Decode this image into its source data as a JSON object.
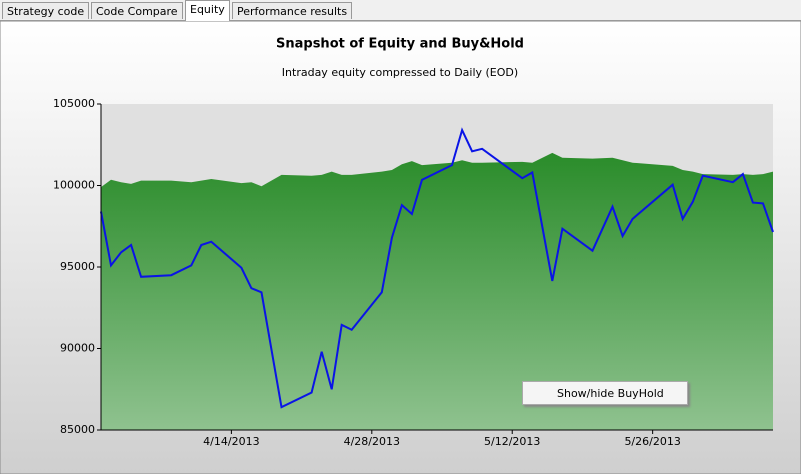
{
  "tabs": [
    "Strategy code",
    "Code Compare",
    "Equity",
    "Performance results"
  ],
  "active_tab": 2,
  "menu_item": "Show/hide BuyHold",
  "chart_data": {
    "type": "line",
    "title": "Snapshot of Equity and Buy&Hold",
    "subtitle": "Intraday equity compressed to Daily (EOD)",
    "x": [
      "2013-04-01",
      "2013-04-02",
      "2013-04-03",
      "2013-04-04",
      "2013-04-05",
      "2013-04-08",
      "2013-04-10",
      "2013-04-11",
      "2013-04-12",
      "2013-04-15",
      "2013-04-16",
      "2013-04-17",
      "2013-04-19",
      "2013-04-22",
      "2013-04-23",
      "2013-04-24",
      "2013-04-25",
      "2013-04-26",
      "2013-04-29",
      "2013-04-30",
      "2013-05-01",
      "2013-05-02",
      "2013-05-03",
      "2013-05-06",
      "2013-05-07",
      "2013-05-08",
      "2013-05-09",
      "2013-05-13",
      "2013-05-14",
      "2013-05-16",
      "2013-05-17",
      "2013-05-20",
      "2013-05-22",
      "2013-05-23",
      "2013-05-24",
      "2013-05-28",
      "2013-05-29",
      "2013-05-30",
      "2013-05-31",
      "2013-06-03",
      "2013-06-04",
      "2013-06-05",
      "2013-06-06",
      "2013-06-07"
    ],
    "series": [
      {
        "style": "area",
        "color": "#2a8c2a",
        "color_low": "#8fc28f",
        "values": [
          99900,
          100350,
          100200,
          100100,
          100300,
          100300,
          100200,
          100300,
          100400,
          100150,
          100200,
          99950,
          100650,
          100600,
          100650,
          100850,
          100650,
          100650,
          100850,
          100950,
          101300,
          101500,
          101250,
          101400,
          101550,
          101400,
          101400,
          101450,
          101400,
          102000,
          101700,
          101650,
          101700,
          101550,
          101400,
          101200,
          100950,
          100850,
          100700,
          100650,
          100700,
          100650,
          100700,
          100850
        ]
      },
      {
        "style": "line",
        "color": "#0a14e6",
        "values": [
          98400,
          95100,
          95900,
          96350,
          94400,
          94500,
          95100,
          96350,
          96550,
          94950,
          93700,
          93450,
          86400,
          87300,
          89800,
          87500,
          91450,
          91150,
          93450,
          96800,
          98800,
          98250,
          100350,
          101250,
          103400,
          102100,
          102250,
          100450,
          100800,
          94150,
          97350,
          96000,
          98700,
          96900,
          97950,
          100050,
          97950,
          99000,
          100600,
          100200,
          100700,
          98950,
          98900,
          97150
        ]
      }
    ],
    "xlim": [
      "2013-04-01",
      "2013-06-07"
    ],
    "xticks": [
      {
        "value": "2013-04-14",
        "label": "4/14/2013"
      },
      {
        "value": "2013-04-28",
        "label": "4/28/2013"
      },
      {
        "value": "2013-05-12",
        "label": "5/12/2013"
      },
      {
        "value": "2013-05-26",
        "label": "5/26/2013"
      }
    ],
    "ylim": [
      85000,
      105000
    ],
    "yticks": [
      85000,
      90000,
      95000,
      100000,
      105000
    ],
    "plot_background": "#e0e0e0"
  }
}
